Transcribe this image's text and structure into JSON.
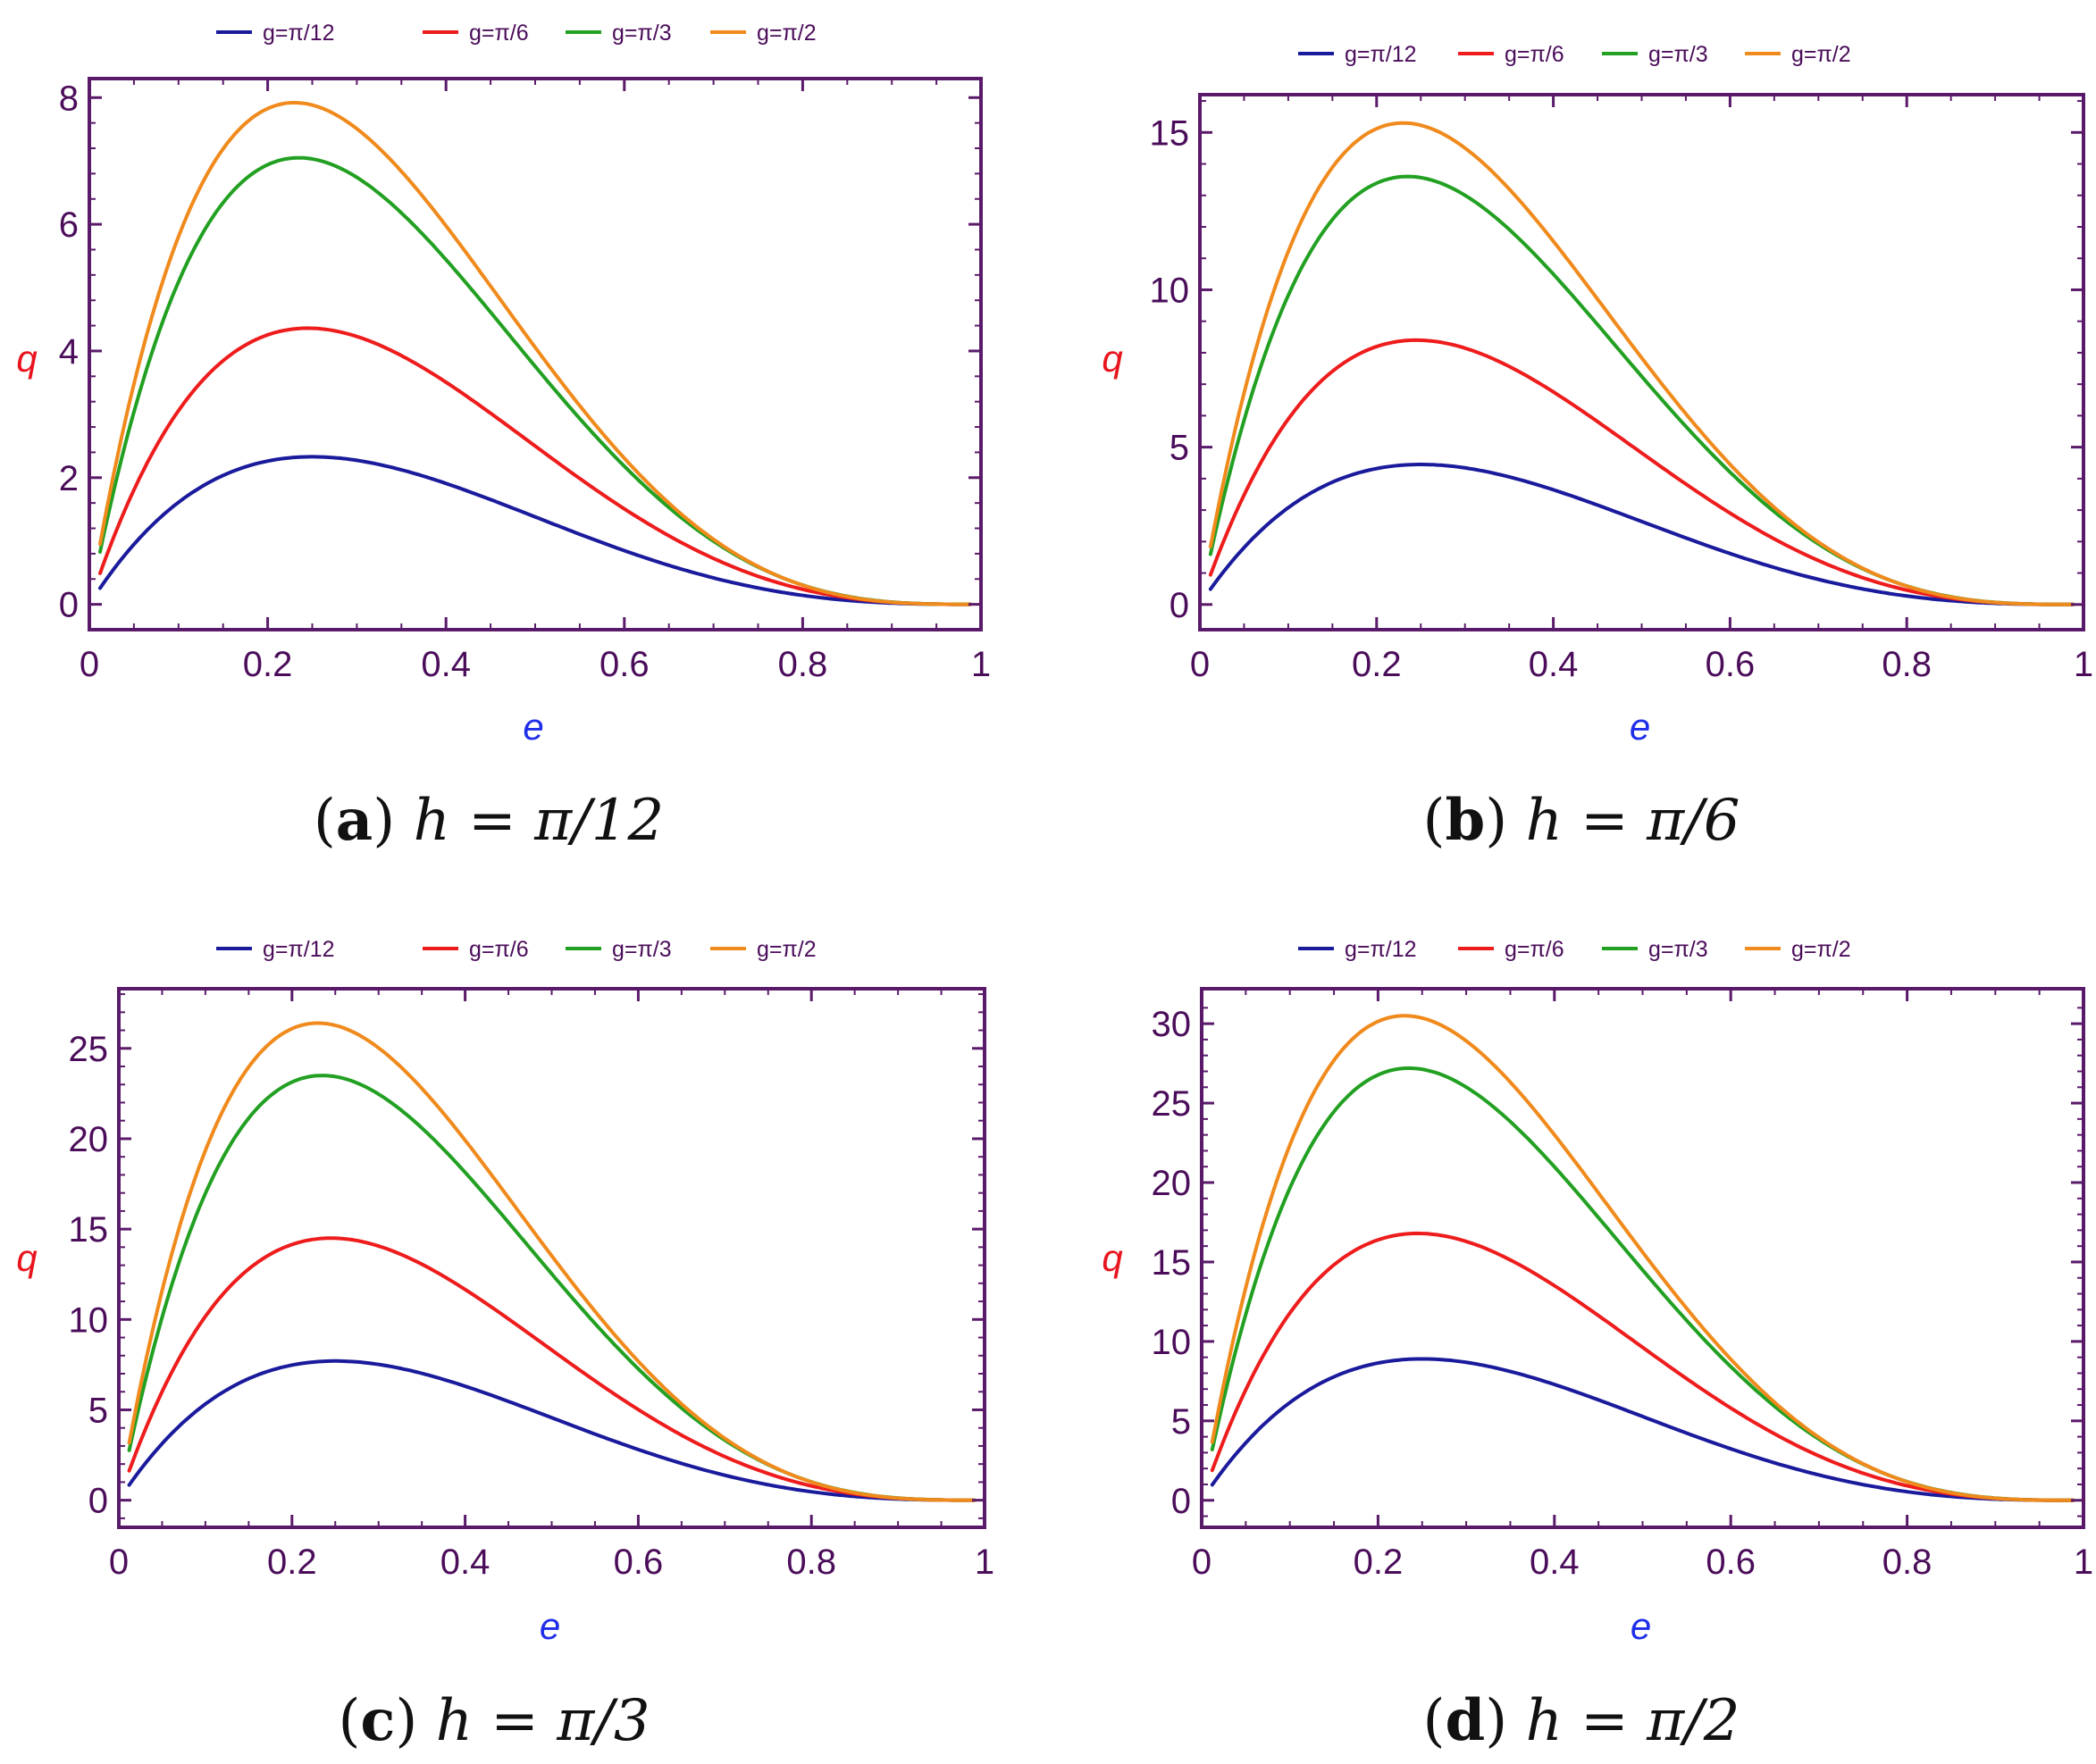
{
  "colors": {
    "frame": "#5a1a6a",
    "tick_text": "#4b0d5a",
    "ylabel": "#e8141e",
    "xlabel": "#1f2ee8",
    "series": [
      "#1a1a9c",
      "#ee1c1c",
      "#22a022",
      "#f08a1c"
    ]
  },
  "chart_data": [
    {
      "type": "line",
      "panel": "a",
      "caption": {
        "tag": "(a)",
        "eq": "h = π/12"
      },
      "xlabel": "e",
      "ylabel": "q",
      "xlim": [
        0,
        1
      ],
      "ylim": [
        -0.4,
        8.3
      ],
      "xticks": [
        "0",
        "0.2",
        "0.4",
        "0.6",
        "0.8",
        "1"
      ],
      "yticks": [
        0,
        2,
        4,
        6,
        8
      ],
      "ytick_labels": [
        "0",
        "2",
        "4",
        "6",
        "8"
      ],
      "series": [
        {
          "name": "g=π/12",
          "amplitude": 2.33,
          "x_peak": 0.25
        },
        {
          "name": "g=π/6",
          "amplitude": 4.36,
          "x_peak": 0.245
        },
        {
          "name": "g=π/3",
          "amplitude": 7.05,
          "x_peak": 0.235
        },
        {
          "name": "g=π/2",
          "amplitude": 7.92,
          "x_peak": 0.23
        }
      ],
      "legend": [
        "g=π/12",
        "g=π/6",
        "g=π/3",
        "g=π/2"
      ]
    },
    {
      "type": "line",
      "panel": "b",
      "caption": {
        "tag": "(b)",
        "eq": "h = π/6"
      },
      "xlabel": "e",
      "ylabel": "q",
      "xlim": [
        0,
        1
      ],
      "ylim": [
        -0.8,
        16.2
      ],
      "xticks": [
        "0",
        "0.2",
        "0.4",
        "0.6",
        "0.8",
        "1"
      ],
      "yticks": [
        0,
        5,
        10,
        15
      ],
      "ytick_labels": [
        "0",
        "5",
        "10",
        "15"
      ],
      "series": [
        {
          "name": "g=π/12",
          "amplitude": 4.45,
          "x_peak": 0.25
        },
        {
          "name": "g=π/6",
          "amplitude": 8.4,
          "x_peak": 0.245
        },
        {
          "name": "g=π/3",
          "amplitude": 13.6,
          "x_peak": 0.235
        },
        {
          "name": "g=π/2",
          "amplitude": 15.3,
          "x_peak": 0.23
        }
      ],
      "legend": [
        "g=π/12",
        "g=π/6",
        "g=π/3",
        "g=π/2"
      ]
    },
    {
      "type": "line",
      "panel": "c",
      "caption": {
        "tag": "(c)",
        "eq": "h = π/3"
      },
      "xlabel": "e",
      "ylabel": "q",
      "xlim": [
        0,
        1
      ],
      "ylim": [
        -1.5,
        28.3
      ],
      "xticks": [
        "0",
        "0.2",
        "0.4",
        "0.6",
        "0.8",
        "1"
      ],
      "yticks": [
        0,
        5,
        10,
        15,
        20,
        25
      ],
      "ytick_labels": [
        "0",
        "5",
        "10",
        "15",
        "20",
        "25"
      ],
      "series": [
        {
          "name": "g=π/12",
          "amplitude": 7.7,
          "x_peak": 0.25
        },
        {
          "name": "g=π/6",
          "amplitude": 14.5,
          "x_peak": 0.245
        },
        {
          "name": "g=π/3",
          "amplitude": 23.5,
          "x_peak": 0.235
        },
        {
          "name": "g=π/2",
          "amplitude": 26.4,
          "x_peak": 0.23
        }
      ],
      "legend": [
        "g=π/12",
        "g=π/6",
        "g=π/3",
        "g=π/2"
      ]
    },
    {
      "type": "line",
      "panel": "d",
      "caption": {
        "tag": "(d)",
        "eq": "h = π/2"
      },
      "xlabel": "e",
      "ylabel": "q",
      "xlim": [
        0,
        1
      ],
      "ylim": [
        -1.7,
        32.2
      ],
      "xticks": [
        "0",
        "0.2",
        "0.4",
        "0.6",
        "0.8",
        "1"
      ],
      "yticks": [
        0,
        5,
        10,
        15,
        20,
        25,
        30
      ],
      "ytick_labels": [
        "0",
        "5",
        "10",
        "15",
        "20",
        "25",
        "30"
      ],
      "series": [
        {
          "name": "g=π/12",
          "amplitude": 8.9,
          "x_peak": 0.25
        },
        {
          "name": "g=π/6",
          "amplitude": 16.8,
          "x_peak": 0.245
        },
        {
          "name": "g=π/3",
          "amplitude": 27.2,
          "x_peak": 0.235
        },
        {
          "name": "g=π/2",
          "amplitude": 30.5,
          "x_peak": 0.23
        }
      ],
      "legend": [
        "g=π/12",
        "g=π/6",
        "g=π/3",
        "g=π/2"
      ]
    }
  ]
}
